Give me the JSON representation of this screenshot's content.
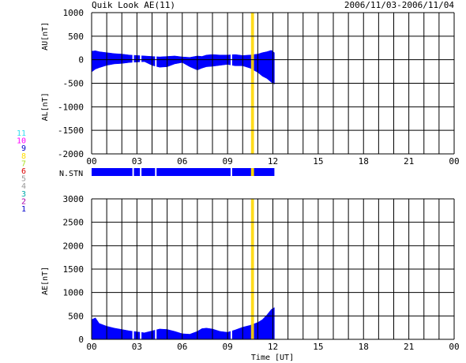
{
  "header": {
    "title": "Quik Look AE(11)",
    "date_range": "2006/11/03-2006/11/04"
  },
  "colors": {
    "series_fill": "#0000ff",
    "gap_fill": "#ffffff",
    "low_station_fill": "#ffd700",
    "grid": "#000000"
  },
  "station_legend": [
    {
      "label": "11",
      "color": "#33ddee"
    },
    {
      "label": "10",
      "color": "#ff00ff"
    },
    {
      "label": "9",
      "color": "#0000cc"
    },
    {
      "label": "8",
      "color": "#ffdd00"
    },
    {
      "label": "7",
      "color": "#aadd22"
    },
    {
      "label": "6",
      "color": "#dd0000"
    },
    {
      "label": "5",
      "color": "#999999"
    },
    {
      "label": "4",
      "color": "#999999"
    },
    {
      "label": "3",
      "color": "#00aaaa"
    },
    {
      "label": "2",
      "color": "#aa00aa"
    },
    {
      "label": "1",
      "color": "#0000cc"
    }
  ],
  "chart_data": [
    {
      "type": "area",
      "name": "au_al",
      "ylabel_upper": "AU[nT]",
      "ylabel_lower": "AL[nT]",
      "x_range_hours": [
        0,
        24
      ],
      "xticks": [
        "00",
        "03",
        "06",
        "09",
        "12",
        "15",
        "18",
        "21",
        "00"
      ],
      "ylim": [
        -2000,
        1000
      ],
      "yticks": [
        "1000",
        "500",
        "0",
        "-500",
        "-1000",
        "-1500",
        "-2000"
      ],
      "grid": true,
      "data_end_hour": 12.1,
      "x": [
        0.0,
        0.25,
        0.5,
        1.0,
        1.5,
        2.0,
        2.5,
        3.0,
        3.5,
        4.0,
        4.5,
        5.0,
        5.5,
        6.0,
        6.5,
        7.0,
        7.3,
        7.6,
        8.0,
        8.5,
        9.0,
        9.5,
        10.0,
        10.5,
        11.0,
        11.3,
        11.6,
        11.9,
        12.1
      ],
      "au": [
        180,
        190,
        170,
        150,
        130,
        120,
        100,
        90,
        80,
        70,
        60,
        70,
        80,
        60,
        50,
        80,
        70,
        100,
        110,
        100,
        100,
        110,
        90,
        100,
        120,
        150,
        170,
        200,
        150
      ],
      "al": [
        -260,
        -200,
        -170,
        -120,
        -90,
        -80,
        -60,
        -50,
        -40,
        -120,
        -160,
        -150,
        -90,
        -60,
        -150,
        -220,
        -180,
        -150,
        -140,
        -120,
        -100,
        -130,
        -130,
        -180,
        -270,
        -350,
        -400,
        -480,
        -520
      ],
      "gaps_hours": [
        [
          2.7,
          2.8
        ],
        [
          3.2,
          3.3
        ],
        [
          4.2,
          4.3
        ],
        [
          9.2,
          9.3
        ],
        [
          10.55,
          10.75
        ]
      ]
    },
    {
      "type": "bar",
      "name": "n_stn",
      "ylabel": "N.STN",
      "data_end_hour": 12.1,
      "gaps_hours": [
        [
          2.7,
          2.8
        ],
        [
          3.2,
          3.3
        ],
        [
          4.2,
          4.3
        ],
        [
          9.2,
          9.3
        ]
      ],
      "low_station_hours": [
        [
          10.55,
          10.75
        ]
      ]
    },
    {
      "type": "area",
      "name": "ae",
      "ylabel": "AE[nT]",
      "xlabel": "Time [UT]",
      "x_range_hours": [
        0,
        24
      ],
      "xticks": [
        "00",
        "03",
        "06",
        "09",
        "12",
        "15",
        "18",
        "21",
        "00"
      ],
      "ylim": [
        0,
        3000
      ],
      "yticks": [
        "3000",
        "2500",
        "2000",
        "1500",
        "1000",
        "500",
        "0"
      ],
      "grid": true,
      "data_end_hour": 12.1,
      "x": [
        0.0,
        0.25,
        0.5,
        1.0,
        1.5,
        2.0,
        2.5,
        3.0,
        3.5,
        4.0,
        4.5,
        5.0,
        5.5,
        6.0,
        6.5,
        7.0,
        7.3,
        7.6,
        8.0,
        8.5,
        9.0,
        9.5,
        10.0,
        10.5,
        11.0,
        11.3,
        11.6,
        11.9,
        12.1
      ],
      "ae": [
        420,
        460,
        340,
        280,
        240,
        210,
        180,
        160,
        140,
        180,
        220,
        210,
        170,
        120,
        110,
        170,
        230,
        240,
        220,
        170,
        150,
        200,
        260,
        300,
        360,
        420,
        520,
        640,
        680
      ],
      "gaps_hours": [
        [
          2.7,
          2.8
        ],
        [
          3.2,
          3.3
        ],
        [
          4.2,
          4.3
        ],
        [
          9.2,
          9.3
        ],
        [
          10.55,
          10.75
        ]
      ]
    }
  ]
}
